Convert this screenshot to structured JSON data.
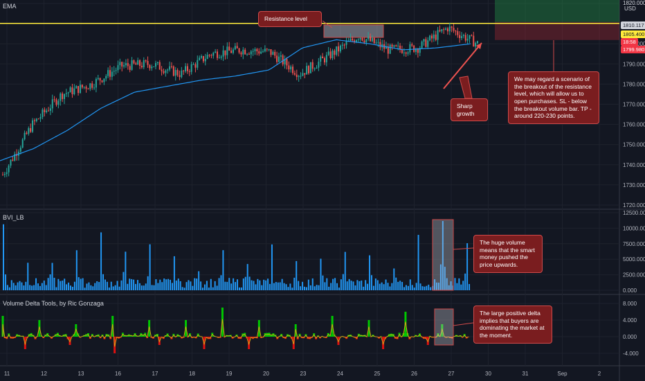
{
  "indicators": {
    "ema": "EMA",
    "bvi": "BVI_LB",
    "vdt": "Volume Delta Tools, by Ric Gonzaga"
  },
  "currency": "USD",
  "price_tags": {
    "resistance": "1810.117",
    "current": "1805.400",
    "timer": "18:58",
    "alt": "1799.980",
    "top": "1820.000"
  },
  "callouts": {
    "resistance": "Resistance level",
    "growth": "Sharp growth",
    "scenario": "We may regard a scenario of the breakout of the resistance level, which will allow us to open purchases. SL - below the breakout volume bar. TP - around 220-230 points.",
    "volume": "The huge volume means that the smart money pushed the price upwards.",
    "delta": "The large positive delta implies that buyers are dominating the market at the moment."
  },
  "colors": {
    "bg": "#131722",
    "bull": "#26a69a",
    "bear": "#ef5350",
    "ema": "#2196f3",
    "resistance": "#ffeb3b",
    "volume": "#2196f3",
    "delta_pos": "#00c800",
    "delta_neg": "#e01010",
    "callout": "#7a1d1f"
  },
  "chart_data": [
    {
      "type": "candlestick",
      "title": "",
      "ylim": [
        1720,
        1820
      ],
      "y_ticks": [
        "1820.000",
        "1810.000",
        "1800.000",
        "1790.000",
        "1780.000",
        "1770.000",
        "1760.000",
        "1750.000",
        "1740.000",
        "1730.000",
        "1720.000"
      ],
      "x_ticks": [
        "11",
        "12",
        "13",
        "16",
        "17",
        "18",
        "19",
        "20",
        "23",
        "24",
        "25",
        "26",
        "27",
        "30",
        "31",
        "Sep",
        "2"
      ],
      "resistance_level": 1810.117,
      "price_path": [
        [
          0,
          1735
        ],
        [
          1,
          1760
        ],
        [
          2,
          1775
        ],
        [
          3,
          1780
        ],
        [
          4,
          1789
        ],
        [
          5,
          1790
        ],
        [
          6,
          1785
        ],
        [
          7,
          1795
        ],
        [
          8,
          1797
        ],
        [
          9,
          1796
        ],
        [
          10,
          1785
        ],
        [
          11,
          1794
        ],
        [
          12,
          1804
        ],
        [
          13,
          1797
        ],
        [
          14,
          1798
        ],
        [
          15,
          1808
        ],
        [
          16,
          1800
        ]
      ],
      "ema_path": [
        [
          0,
          1742
        ],
        [
          1,
          1748
        ],
        [
          2,
          1757
        ],
        [
          3,
          1768
        ],
        [
          4,
          1776
        ],
        [
          5,
          1779
        ],
        [
          6,
          1782
        ],
        [
          7,
          1784
        ],
        [
          8,
          1787
        ],
        [
          9,
          1798
        ],
        [
          10,
          1802
        ],
        [
          11,
          1800
        ],
        [
          12,
          1797
        ],
        [
          13,
          1798
        ],
        [
          14,
          1800
        ]
      ]
    },
    {
      "type": "bar",
      "title": "BVI_LB",
      "ylim": [
        0,
        12500
      ],
      "y_ticks": [
        "12500.000",
        "10000.000",
        "7500.000",
        "5000.000",
        "2500.000",
        "0.000"
      ],
      "peaks": [
        12000,
        5000,
        6000,
        8500,
        9500,
        7500,
        8000,
        5500,
        4000,
        7500,
        6000,
        8000,
        5000,
        6500,
        8000,
        6000,
        5000,
        9000,
        12000,
        9000
      ]
    },
    {
      "type": "area",
      "title": "Volume Delta Tools, by Ric Gonzaga",
      "ylim": [
        -6,
        9
      ],
      "y_ticks": [
        "8.000",
        "4.000",
        "0.000",
        "-4.000"
      ],
      "peaks": [
        5,
        4,
        3,
        5,
        4,
        4,
        7,
        4,
        3,
        5,
        4,
        6,
        3
      ],
      "troughs": [
        -3,
        -2,
        -4,
        -2,
        -3,
        -3,
        -3,
        -2,
        -3,
        -2
      ]
    }
  ]
}
